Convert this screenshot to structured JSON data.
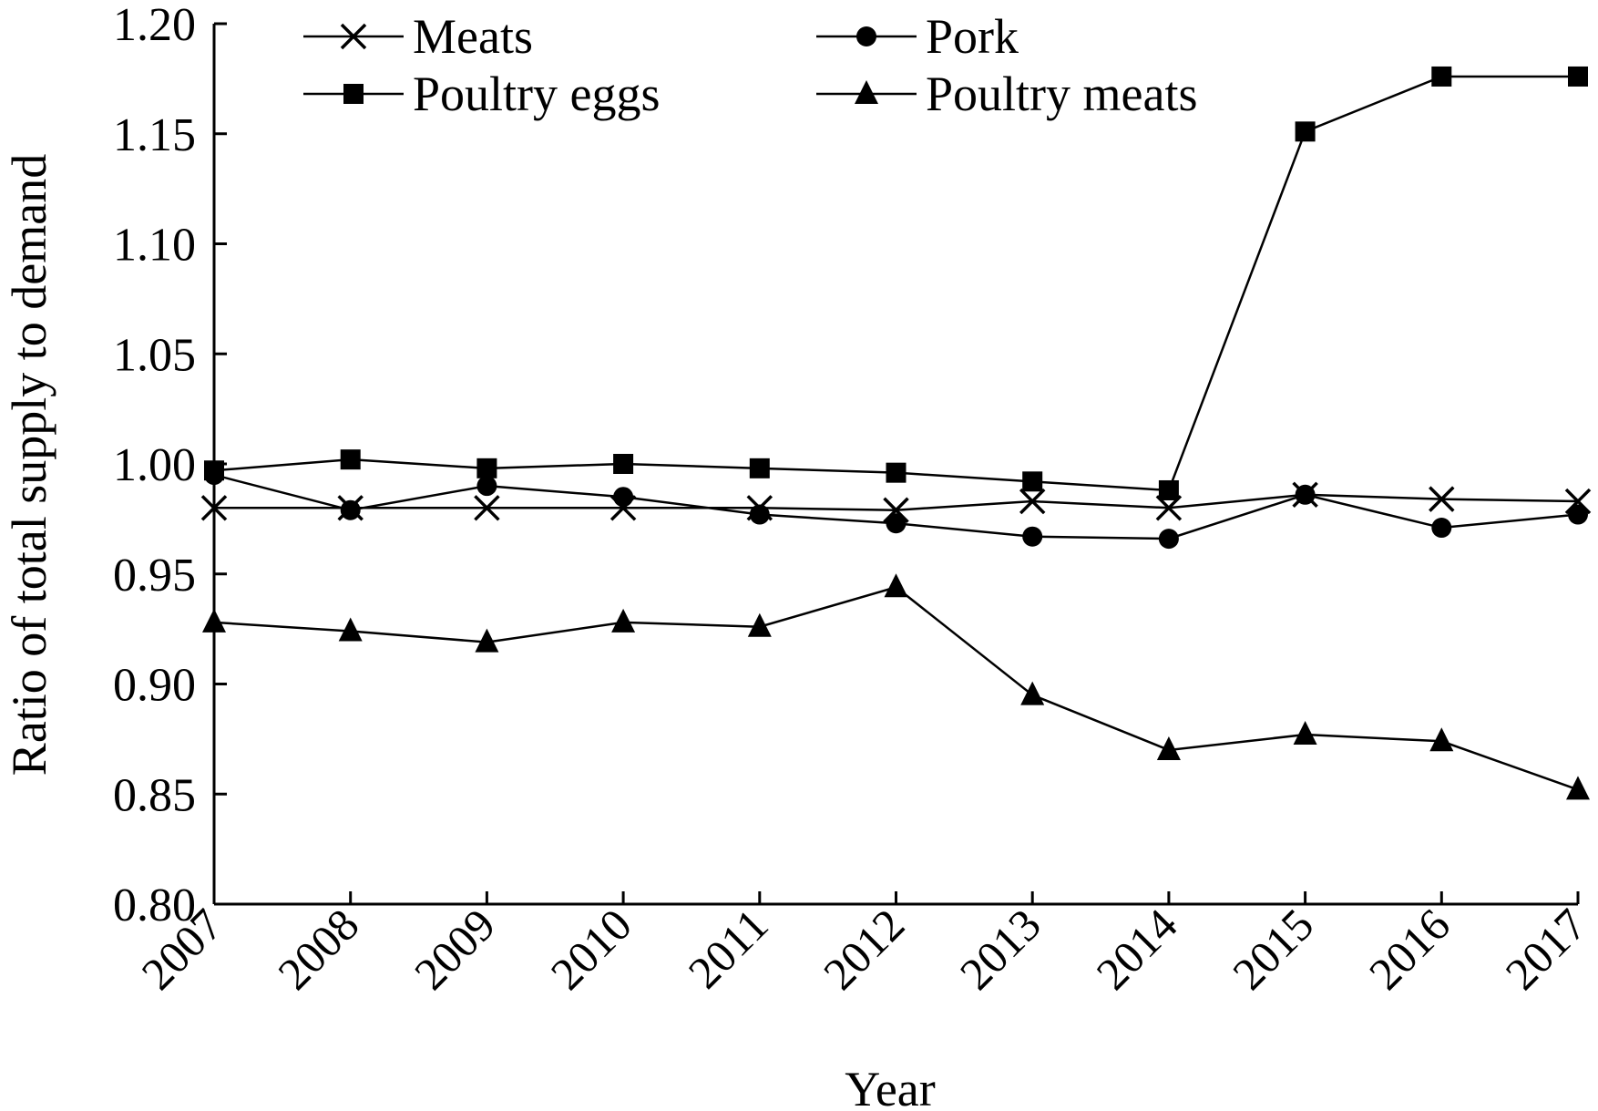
{
  "chart_data": {
    "type": "line",
    "xlabel": "Year",
    "ylabel": "Ratio of total supply to demand",
    "x": [
      "2007",
      "2008",
      "2009",
      "2010",
      "2011",
      "2012",
      "2013",
      "2014",
      "2015",
      "2016",
      "2017"
    ],
    "ylim": [
      0.8,
      1.2
    ],
    "yticks": [
      "0.80",
      "0.85",
      "0.90",
      "0.95",
      "1.00",
      "1.05",
      "1.10",
      "1.15",
      "1.20"
    ],
    "grid": false,
    "legend": "top, two columns",
    "series": [
      {
        "name": "Meats",
        "marker": "x",
        "values": [
          0.98,
          0.98,
          0.98,
          0.98,
          0.98,
          0.979,
          0.983,
          0.98,
          0.986,
          0.984,
          0.983
        ]
      },
      {
        "name": "Pork",
        "marker": "circle",
        "values": [
          0.995,
          0.979,
          0.99,
          0.985,
          0.977,
          0.973,
          0.967,
          0.966,
          0.986,
          0.971,
          0.977
        ]
      },
      {
        "name": "Poultry eggs",
        "marker": "square",
        "values": [
          0.997,
          1.002,
          0.998,
          1.0,
          0.998,
          0.996,
          0.992,
          0.988,
          1.151,
          1.176,
          1.176
        ]
      },
      {
        "name": "Poultry meats",
        "marker": "triangle",
        "values": [
          0.928,
          0.924,
          0.919,
          0.928,
          0.926,
          0.944,
          0.895,
          0.87,
          0.877,
          0.874,
          0.852
        ]
      }
    ],
    "colors": {
      "line": "#000000",
      "background": "#ffffff"
    }
  }
}
